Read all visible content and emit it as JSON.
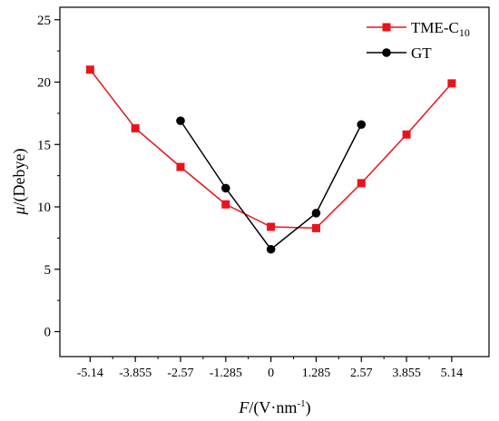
{
  "chart_data": {
    "type": "line",
    "x_categories": [
      "-5.14",
      "-3.855",
      "-2.57",
      "-1.285",
      "0",
      "1.285",
      "2.57",
      "3.855",
      "5.14"
    ],
    "x_values": [
      -5.14,
      -3.855,
      -2.57,
      -1.285,
      0,
      1.285,
      2.57,
      3.855,
      5.14
    ],
    "xlim": [
      -6.0,
      6.2
    ],
    "ylim": [
      -2,
      26
    ],
    "y_ticks": [
      0,
      5,
      10,
      15,
      20,
      25
    ],
    "xlabel": {
      "italic": "F",
      "rest": "/(V·nm",
      "sup": "-1",
      "close": ")"
    },
    "ylabel": {
      "italic": "μ",
      "rest": "/(Debye)"
    },
    "legend_position": "top-right",
    "series": [
      {
        "name": "TME-C",
        "name_sub": "10",
        "color": "#e8141c",
        "marker": "square",
        "x": [
          -5.14,
          -3.855,
          -2.57,
          -1.285,
          0,
          1.285,
          2.57,
          3.855,
          5.14
        ],
        "y": [
          21.0,
          16.3,
          13.2,
          10.2,
          8.4,
          8.3,
          11.9,
          15.8,
          19.9
        ]
      },
      {
        "name": "GT",
        "color": "#000000",
        "marker": "circle",
        "x": [
          -2.57,
          -1.285,
          0,
          1.285,
          2.57
        ],
        "y": [
          16.9,
          11.5,
          6.6,
          9.5,
          16.6
        ]
      }
    ]
  }
}
